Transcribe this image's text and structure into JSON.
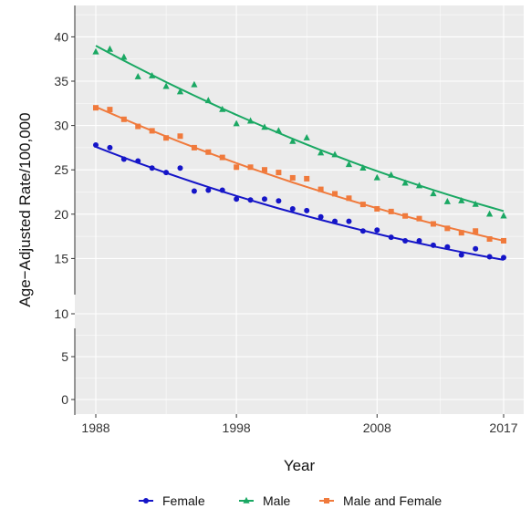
{
  "chart_data": {
    "type": "scatter",
    "xlabel": "Year",
    "ylabel": "Age−Adjusted Rate/100,000",
    "x_ticks": [
      "1988",
      "1998",
      "2008",
      "2017"
    ],
    "x_tick_values": [
      1988,
      1998,
      2008,
      2017
    ],
    "y_ticks_upper": [
      "15",
      "20",
      "25",
      "30",
      "35",
      "40"
    ],
    "y_ticks_lower": [
      "0",
      "5",
      "10"
    ],
    "y_scale": "broken axis: 0-10 compressed, 10-43 expanded",
    "grid": true,
    "legend_position": "bottom",
    "x": [
      1988,
      1989,
      1990,
      1991,
      1992,
      1993,
      1994,
      1995,
      1996,
      1997,
      1998,
      1999,
      2000,
      2001,
      2002,
      2003,
      2004,
      2005,
      2006,
      2007,
      2008,
      2009,
      2010,
      2011,
      2012,
      2013,
      2014,
      2015,
      2016,
      2017
    ],
    "series": [
      {
        "name": "Female",
        "marker": "circle",
        "color": "#1515c8",
        "values": [
          27.8,
          27.5,
          26.2,
          26.0,
          25.2,
          24.7,
          25.2,
          22.6,
          22.7,
          22.7,
          21.7,
          21.6,
          21.7,
          21.5,
          20.6,
          20.4,
          19.7,
          19.2,
          19.2,
          18.1,
          18.2,
          17.4,
          17.0,
          17.0,
          16.5,
          16.3,
          15.4,
          16.1,
          15.2,
          15.1
        ],
        "fit": [
          27.6,
          26.98,
          26.38,
          25.79,
          25.22,
          24.66,
          24.11,
          23.58,
          23.06,
          22.55,
          22.06,
          21.58,
          21.11,
          20.65,
          20.21,
          19.78,
          19.36,
          18.95,
          18.55,
          18.16,
          17.78,
          17.41,
          17.06,
          16.71,
          16.37,
          16.05,
          15.73,
          15.43,
          15.13,
          14.85
        ]
      },
      {
        "name": "Male",
        "marker": "triangle",
        "color": "#1aa863",
        "values": [
          38.3,
          38.6,
          37.7,
          35.5,
          35.6,
          34.4,
          33.8,
          34.6,
          32.8,
          31.8,
          30.2,
          30.5,
          29.8,
          29.4,
          28.2,
          28.6,
          26.9,
          26.7,
          25.6,
          25.2,
          24.1,
          24.4,
          23.5,
          23.2,
          22.3,
          21.4,
          21.5,
          21.1,
          20.0,
          19.8
        ],
        "fit": [
          39.0,
          38.15,
          37.32,
          36.5,
          35.69,
          34.9,
          34.13,
          33.38,
          32.64,
          31.91,
          31.2,
          30.51,
          29.83,
          29.16,
          28.5,
          27.86,
          27.23,
          26.62,
          26.02,
          25.43,
          24.86,
          24.31,
          23.77,
          23.24,
          22.72,
          22.22,
          21.73,
          21.26,
          20.8,
          20.35
        ]
      },
      {
        "name": "Male and Female",
        "marker": "square",
        "color": "#f07a3c",
        "values": [
          32.0,
          31.8,
          30.7,
          29.9,
          29.4,
          28.6,
          28.8,
          27.5,
          27.0,
          26.4,
          25.3,
          25.3,
          25.0,
          24.7,
          24.1,
          24.0,
          22.8,
          22.3,
          21.8,
          21.1,
          20.6,
          20.3,
          19.8,
          19.5,
          18.9,
          18.4,
          17.9,
          18.1,
          17.2,
          17.0
        ],
        "fit": [
          32.1,
          31.41,
          30.73,
          30.06,
          29.41,
          28.77,
          28.14,
          27.53,
          26.93,
          26.34,
          25.76,
          25.2,
          24.65,
          24.11,
          23.58,
          23.07,
          22.57,
          22.08,
          21.6,
          21.13,
          20.67,
          20.22,
          19.78,
          19.35,
          18.93,
          18.52,
          18.13,
          17.74,
          17.36,
          17.0
        ]
      }
    ]
  }
}
